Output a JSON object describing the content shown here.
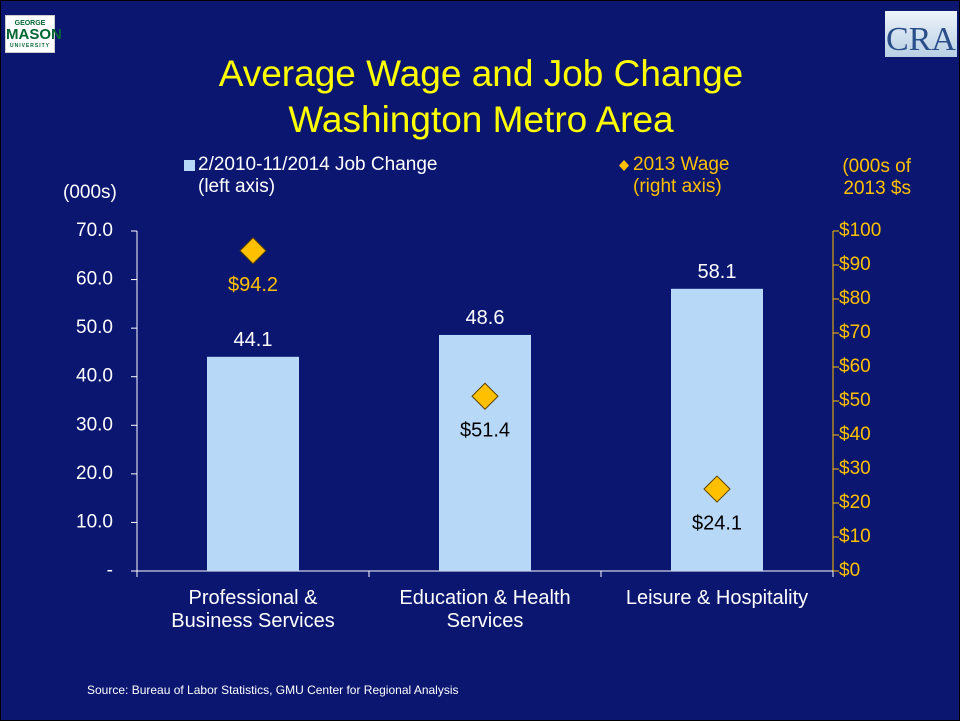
{
  "logos": {
    "left": [
      "GEORGE",
      "MASON",
      "UNIVERSITY"
    ],
    "right": "CRA"
  },
  "source": "Source: Bureau of Labor Statistics, GMU Center for Regional Analysis",
  "chart_data": {
    "type": "bar",
    "title": [
      "Average Wage and Job Change",
      "Washington Metro Area"
    ],
    "y_axis_label": "(000s)",
    "y2_axis_label": "(000s of\n2013 $s",
    "categories": [
      "Professional &\nBusiness Services",
      "Education & Health\nServices",
      "Leisure & Hospitality"
    ],
    "series": [
      {
        "name": "2/2010-11/2014 Job Change\n(left axis)",
        "type": "bar",
        "color": "#b8d8f8",
        "values": [
          44.1,
          48.6,
          58.1
        ]
      },
      {
        "name": "2013 Wage\n(right axis)",
        "type": "scatter",
        "axis": "y2",
        "color": "#ffc000",
        "values": [
          94.2,
          51.4,
          24.1
        ],
        "value_labels": [
          "$94.2",
          "$51.4",
          "$24.1"
        ]
      }
    ],
    "ylim": [
      0,
      70
    ],
    "yticks": [
      {
        "value": 0,
        "label": "-"
      },
      {
        "value": 10,
        "label": "10.0"
      },
      {
        "value": 20,
        "label": "20.0"
      },
      {
        "value": 30,
        "label": "30.0"
      },
      {
        "value": 40,
        "label": "40.0"
      },
      {
        "value": 50,
        "label": "50.0"
      },
      {
        "value": 60,
        "label": "60.0"
      },
      {
        "value": 70,
        "label": "70.0"
      }
    ],
    "y2lim": [
      0,
      100
    ],
    "y2ticks": [
      {
        "value": 0,
        "label": "$0"
      },
      {
        "value": 10,
        "label": "$10"
      },
      {
        "value": 20,
        "label": "$20"
      },
      {
        "value": 30,
        "label": "$30"
      },
      {
        "value": 40,
        "label": "$40"
      },
      {
        "value": 50,
        "label": "$50"
      },
      {
        "value": 60,
        "label": "$60"
      },
      {
        "value": 70,
        "label": "$70"
      },
      {
        "value": 80,
        "label": "$80"
      },
      {
        "value": 90,
        "label": "$90"
      },
      {
        "value": 100,
        "label": "$100"
      }
    ],
    "grid": false
  }
}
